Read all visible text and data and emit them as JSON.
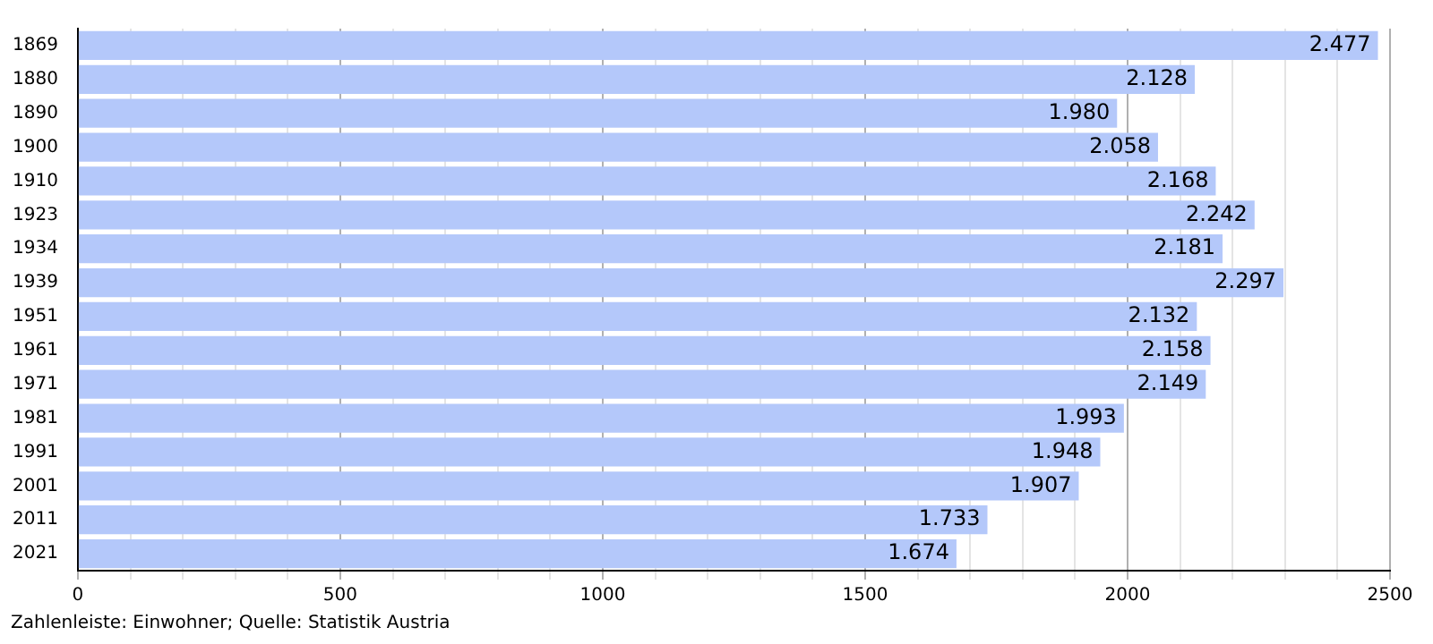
{
  "chart_data": {
    "type": "bar",
    "orientation": "horizontal",
    "categories": [
      "1869",
      "1880",
      "1890",
      "1900",
      "1910",
      "1923",
      "1934",
      "1939",
      "1951",
      "1961",
      "1971",
      "1981",
      "1991",
      "2001",
      "2011",
      "2021"
    ],
    "values": [
      2477,
      2128,
      1980,
      2058,
      2168,
      2242,
      2181,
      2297,
      2132,
      2158,
      2149,
      1993,
      1948,
      1907,
      1733,
      1674
    ],
    "value_labels": [
      "2.477",
      "2.128",
      "1.980",
      "2.058",
      "2.168",
      "2.242",
      "2.181",
      "2.297",
      "2.132",
      "2.158",
      "2.149",
      "1.993",
      "1.948",
      "1.907",
      "1.733",
      "1.674"
    ],
    "color": "#b4c8fa",
    "xlim": [
      0,
      2500
    ],
    "xticks": [
      0,
      {
        "value": 100,
        "label": null
      },
      {
        "value": 200,
        "label": null
      },
      {
        "value": 300,
        "label": null
      },
      {
        "value": 400,
        "label": null
      },
      500,
      {
        "value": 600,
        "label": null
      },
      {
        "value": 700,
        "label": null
      },
      {
        "value": 800,
        "label": null
      },
      {
        "value": 900,
        "label": null
      },
      1000,
      {
        "value": 1100,
        "label": null
      },
      {
        "value": 1200,
        "label": null
      },
      {
        "value": 1300,
        "label": null
      },
      {
        "value": 1400,
        "label": null
      },
      1500,
      {
        "value": 1600,
        "label": null
      },
      {
        "value": 1700,
        "label": null
      },
      {
        "value": 1800,
        "label": null
      },
      {
        "value": 1900,
        "label": null
      },
      2000,
      {
        "value": 2100,
        "label": null
      },
      {
        "value": 2200,
        "label": null
      },
      {
        "value": 2300,
        "label": null
      },
      {
        "value": 2400,
        "label": null
      },
      2500
    ],
    "grid": "x",
    "annotations": [
      "Zahlenleiste: Einwohner; Quelle: Statistik Austria"
    ]
  }
}
